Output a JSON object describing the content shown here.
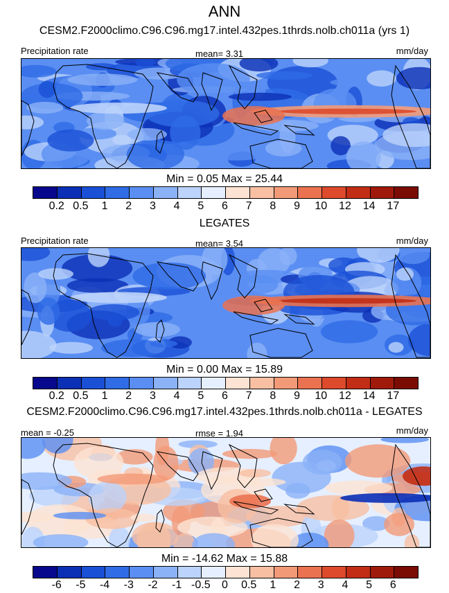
{
  "figure_title": "ANN",
  "panels": [
    {
      "title": "CESM2.F2000climo.C96.C96.mg17.intel.432pes.1thrds.nolb.ch011a (yrs 1)",
      "left_label": "Precipitation rate",
      "center_label": "mean=   3.31",
      "right_label": "mm/day",
      "minmax": "Min =   0.05 Max =  25.44",
      "colorbar_ticks": [
        "0.2",
        "0.5",
        "1",
        "2",
        "3",
        "4",
        "5",
        "6",
        "7",
        "8",
        "9",
        "10",
        "12",
        "14",
        "17"
      ]
    },
    {
      "title": "LEGATES",
      "left_label": "Precipitation rate",
      "center_label": "mean=   3.54",
      "right_label": "mm/day",
      "minmax": "Min =   0.00 Max =  15.89",
      "colorbar_ticks": [
        "0.2",
        "0.5",
        "1",
        "2",
        "3",
        "4",
        "5",
        "6",
        "7",
        "8",
        "9",
        "10",
        "12",
        "14",
        "17"
      ]
    },
    {
      "title": "CESM2.F2000climo.C96.C96.mg17.intel.432pes.1thrds.nolb.ch011a - LEGATES",
      "left_label": "mean =  -0.25",
      "center_label": "rmse =   1.94",
      "right_label": "mm/day",
      "minmax": "Min = -14.62 Max =  15.88",
      "colorbar_ticks": [
        "-6",
        "-5",
        "-4",
        "-3",
        "-2",
        "-1",
        "-0.5",
        "0",
        "0.5",
        "1",
        "2",
        "3",
        "4",
        "5",
        "6"
      ]
    }
  ],
  "colors": {
    "sequential": [
      "#08088c",
      "#0b2fb5",
      "#1a50d6",
      "#2f6ce6",
      "#5a8ef2",
      "#8bb2f7",
      "#bcd3fb",
      "#e6efff",
      "#fde3d3",
      "#f8bfa3",
      "#f29a78",
      "#ea7250",
      "#dd4a2c",
      "#c22d16",
      "#a01a0c",
      "#7a0c04"
    ],
    "diverging": [
      "#08088c",
      "#0b2fb5",
      "#1a50d6",
      "#2f6ce6",
      "#5a8ef2",
      "#8bb2f7",
      "#bcd3fb",
      "#e6efff",
      "#fde3d3",
      "#f8bfa3",
      "#f29a78",
      "#ea7250",
      "#dd4a2c",
      "#c22d16",
      "#a01a0c",
      "#7a0c04"
    ]
  }
}
